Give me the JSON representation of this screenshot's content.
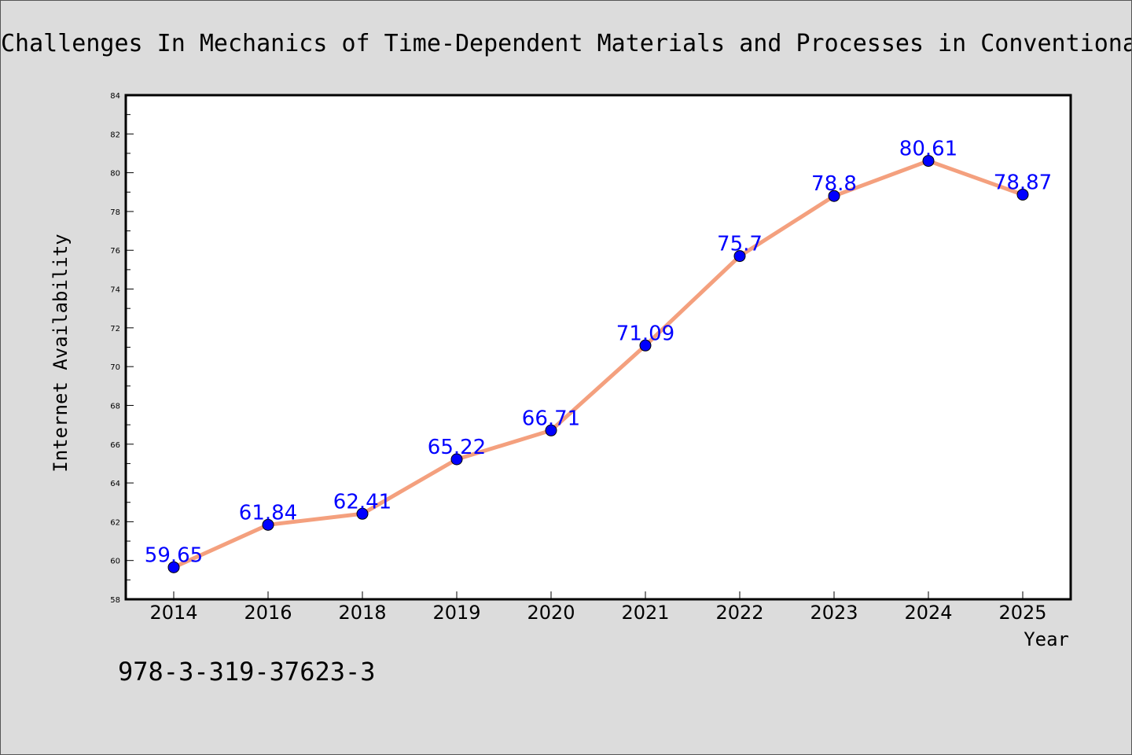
{
  "colors": {
    "background": "#dcdcdc",
    "plot_background": "#ffffff",
    "line": "#f4a07e",
    "marker": "#0000ff",
    "data_label": "#0000ff"
  },
  "footer_text": "978-3-319-37623-3",
  "chart_data": {
    "type": "line",
    "title": "Challenges In Mechanics of Time-Dependent Materials and Processes in Conventional",
    "xlabel": "Year",
    "ylabel": "Internet Availability",
    "categories": [
      "2014",
      "2016",
      "2018",
      "2019",
      "2020",
      "2021",
      "2022",
      "2023",
      "2024",
      "2025"
    ],
    "values": [
      59.65,
      61.84,
      62.41,
      65.22,
      66.71,
      71.09,
      75.7,
      78.8,
      80.61,
      78.87
    ],
    "data_labels": [
      "59.65",
      "61.84",
      "62.41",
      "65.22",
      "66.71",
      "71.09",
      "75.7",
      "78.8",
      "80.61",
      "78.87"
    ],
    "ylim": [
      58,
      84
    ],
    "yticks": [
      "58",
      "60",
      "62",
      "64",
      "66",
      "68",
      "70",
      "72",
      "74",
      "76",
      "78",
      "80",
      "82",
      "84"
    ],
    "grid": false,
    "legend": "none"
  }
}
